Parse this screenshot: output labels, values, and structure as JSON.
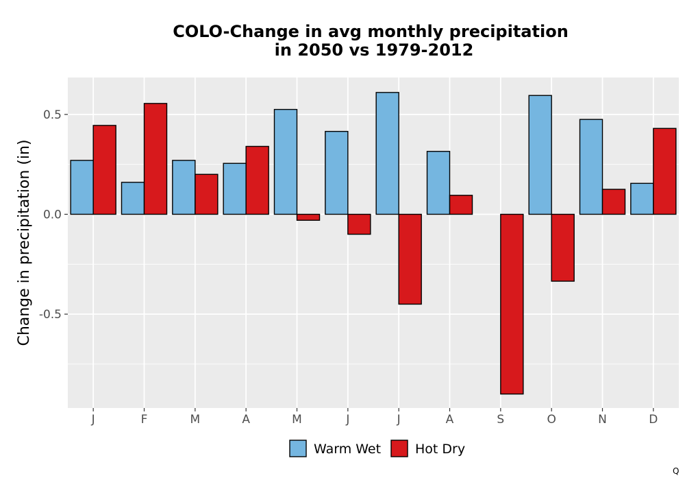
{
  "chart_data": {
    "type": "bar",
    "title_lines": [
      "COLO-Change in avg monthly precipitation",
      "in 2050 vs 1979-2012"
    ],
    "xlabel": "",
    "ylabel": "Change in precipitation (in)",
    "categories": [
      "J",
      "F",
      "M",
      "A",
      "M",
      "J",
      "J",
      "A",
      "S",
      "O",
      "N",
      "D"
    ],
    "series": [
      {
        "name": "Warm Wet",
        "color": "#75b6e0",
        "values": [
          0.27,
          0.16,
          0.27,
          0.255,
          0.525,
          0.415,
          0.61,
          0.315,
          0.0,
          0.595,
          0.475,
          0.155
        ]
      },
      {
        "name": "Hot Dry",
        "color": "#d7191c",
        "values": [
          0.445,
          0.555,
          0.2,
          0.34,
          -0.03,
          -0.1,
          -0.45,
          0.095,
          -0.9,
          -0.335,
          0.125,
          0.43
        ]
      }
    ],
    "yticks": [
      0.5,
      0.0,
      -0.5
    ],
    "ytick_labels": [
      "0.5",
      "0.0",
      "-0.5"
    ],
    "ylim": [
      -0.97,
      0.685
    ],
    "grid": true,
    "legend_position": "bottom",
    "panel_background": "#ebebeb"
  },
  "corner_label": "Q"
}
